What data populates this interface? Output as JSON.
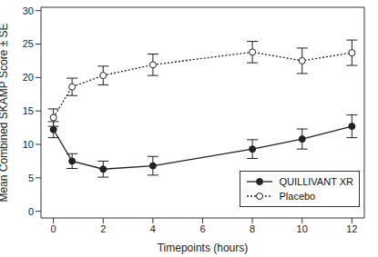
{
  "chart_data": {
    "type": "line",
    "x_label": "Timepoints (hours)",
    "y_label": "Mean Combined SKAMP Score ± SE",
    "x": [
      0,
      0.75,
      2,
      4,
      8,
      10,
      12
    ],
    "series": [
      {
        "name": "QUILLIVANT XR",
        "color": "#222222",
        "marker": "filled_circle",
        "line_style": "solid",
        "values": [
          12.2,
          7.5,
          6.3,
          6.8,
          9.3,
          10.8,
          12.7
        ],
        "errors": [
          1.2,
          1.1,
          1.2,
          1.4,
          1.4,
          1.5,
          1.7
        ]
      },
      {
        "name": "Placebo",
        "color": "#222222",
        "marker": "open_circle",
        "line_style": "dotted",
        "values": [
          14.0,
          18.6,
          20.3,
          21.9,
          23.8,
          22.5,
          23.7
        ],
        "errors": [
          1.3,
          1.3,
          1.4,
          1.6,
          1.6,
          1.9,
          1.9
        ]
      }
    ],
    "xlim": [
      -0.5,
      12.5
    ],
    "ylim": [
      -1,
      30.5
    ],
    "xticks": [
      0,
      2,
      4,
      6,
      8,
      10,
      12
    ],
    "yticks": [
      0,
      5,
      10,
      15,
      20,
      25,
      30
    ],
    "legend": "lower right"
  }
}
